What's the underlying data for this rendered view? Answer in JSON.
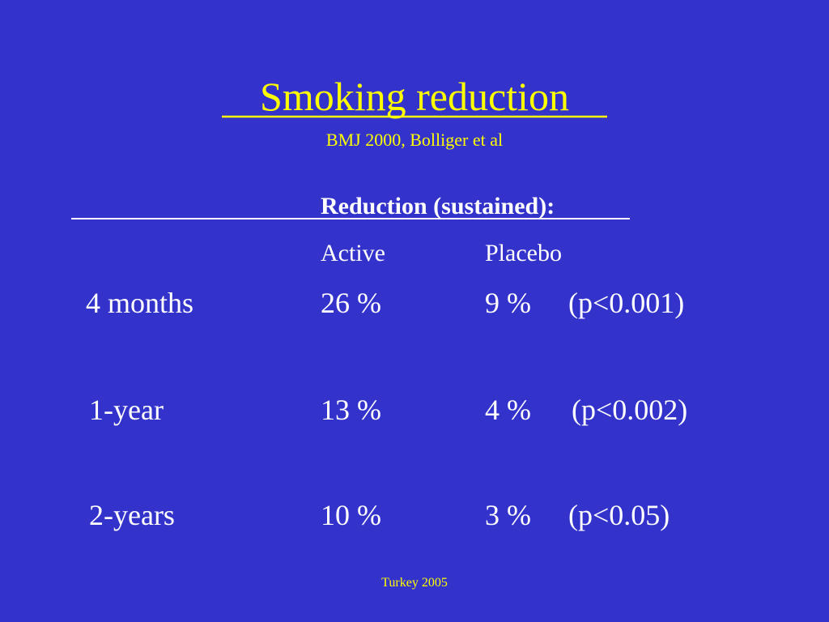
{
  "header": {
    "title": "Smoking reduction",
    "subtitle": "BMJ 2000, Bolliger et al"
  },
  "table": {
    "group_header": "Reduction (sustained):",
    "columns": [
      "Active",
      "Placebo"
    ],
    "rows": [
      [
        "4 months",
        "26 %",
        "9 %",
        "(p<0.001)"
      ],
      [
        "1-year",
        "13 %",
        "4 %",
        "(p<0.002)"
      ],
      [
        "2-years",
        "10 %",
        "3 %",
        "(p<0.05)"
      ]
    ]
  },
  "footer": "Turkey 2005"
}
